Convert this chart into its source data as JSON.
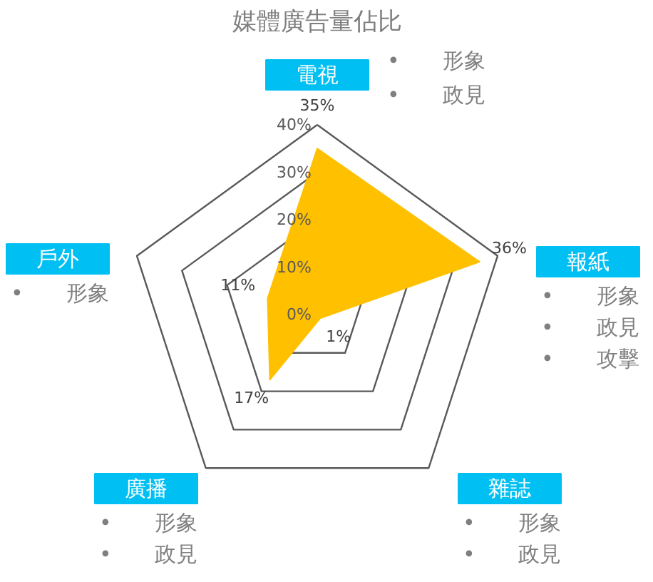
{
  "chart_data": {
    "type": "radar",
    "title": "媒體廣告量佔比",
    "categories": [
      "電視",
      "報紙",
      "雜誌",
      "廣播",
      "戶外"
    ],
    "series": [
      {
        "color": "#ffc000",
        "values": [
          35,
          36,
          1,
          17,
          11
        ]
      }
    ],
    "value_labels": [
      "35%",
      "36%",
      "1%",
      "17%",
      "11%"
    ],
    "ylim": [
      0,
      40
    ],
    "yticks": [
      {
        "value": 0,
        "label": "0%"
      },
      {
        "value": 10,
        "label": "10%"
      },
      {
        "value": 20,
        "label": "20%"
      },
      {
        "value": 30,
        "label": "30%"
      },
      {
        "value": 40,
        "label": "40%"
      }
    ],
    "grid": true,
    "annotations": [
      {
        "text": "•　　形象",
        "x": "電視"
      },
      {
        "text": "•　　政見",
        "x": "電視"
      },
      {
        "text": "•　　形象",
        "x": "報紙"
      },
      {
        "text": "•　　政見",
        "x": "報紙"
      },
      {
        "text": "•　　攻擊",
        "x": "報紙"
      },
      {
        "text": "•　　形象",
        "x": "雜誌"
      },
      {
        "text": "•　　政見",
        "x": "雜誌"
      },
      {
        "text": "•　　形象",
        "x": "廣播"
      },
      {
        "text": "•　　政見",
        "x": "廣播"
      },
      {
        "text": "•　　形象",
        "x": "戶外"
      }
    ]
  }
}
